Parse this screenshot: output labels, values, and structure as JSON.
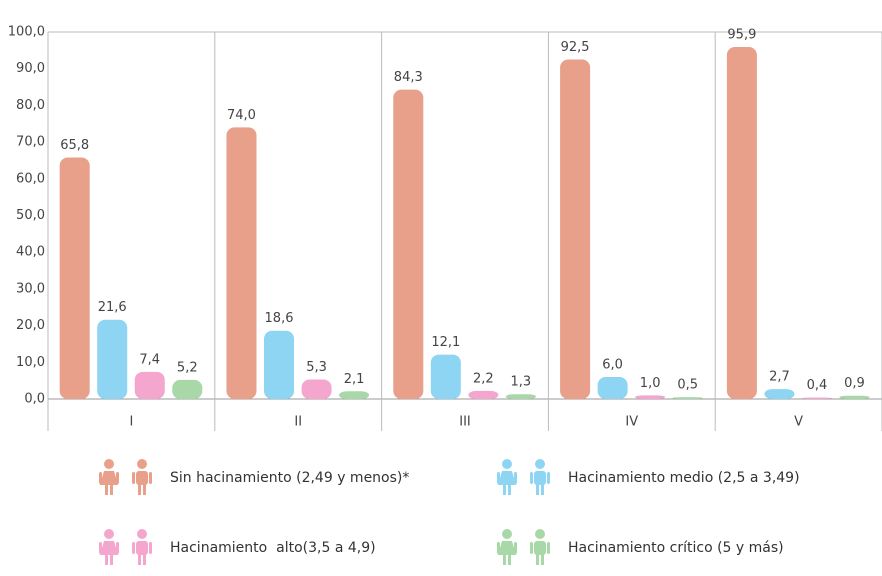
{
  "chart_data": {
    "type": "bar",
    "categories": [
      "I",
      "II",
      "III",
      "IV",
      "V"
    ],
    "series": [
      {
        "name": "Sin hacinamiento (2,49 y menos)*",
        "color": "#e9a08a",
        "values": [
          65.8,
          74.0,
          84.3,
          92.5,
          95.9
        ],
        "value_labels": [
          "65,8",
          "74,0",
          "84,3",
          "92,5",
          "95,9"
        ]
      },
      {
        "name": "Hacinamiento medio (2,5 a 3,49)",
        "color": "#8dd5f2",
        "values": [
          21.6,
          18.6,
          12.1,
          6.0,
          2.7
        ],
        "value_labels": [
          "21,6",
          "18,6",
          "12,1",
          "6,0",
          "2,7"
        ]
      },
      {
        "name": "Hacinamiento  alto(3,5 a 4,9)",
        "color": "#f4a6cf",
        "values": [
          7.4,
          5.3,
          2.2,
          1.0,
          0.4
        ],
        "value_labels": [
          "7,4",
          "5,3",
          "2,2",
          "1,0",
          "0,4"
        ]
      },
      {
        "name": "Hacinamiento crítico (5 y más)",
        "color": "#a8d8a8",
        "values": [
          5.2,
          2.1,
          1.3,
          0.5,
          0.9
        ],
        "value_labels": [
          "5,2",
          "2,1",
          "1,3",
          "0,5",
          "0,9"
        ]
      }
    ],
    "ylim": [
      0,
      100
    ],
    "yticks": [
      {
        "value": 0,
        "label": "0,0"
      },
      {
        "value": 10,
        "label": "10,0"
      },
      {
        "value": 20,
        "label": "20,0"
      },
      {
        "value": 30,
        "label": "30,0"
      },
      {
        "value": 40,
        "label": "40,0"
      },
      {
        "value": 50,
        "label": "50,0"
      },
      {
        "value": 60,
        "label": "60,0"
      },
      {
        "value": 70,
        "label": "70,0"
      },
      {
        "value": 80,
        "label": "80,0"
      },
      {
        "value": 90,
        "label": "90,0"
      },
      {
        "value": 100,
        "label": "100,0"
      }
    ],
    "grid": false
  }
}
